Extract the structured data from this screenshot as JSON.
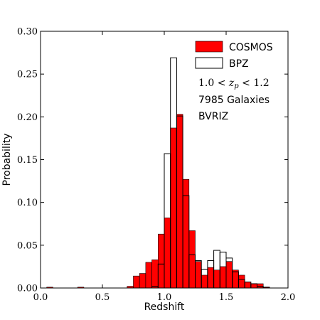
{
  "chart_data": {
    "type": "bar",
    "xlabel": "Redshift",
    "ylabel": "Probability",
    "xlim": [
      0.0,
      2.0
    ],
    "ylim": [
      0.0,
      0.3
    ],
    "xticks": [
      "0.0",
      "0.5",
      "1.0",
      "1.5",
      "2.0"
    ],
    "yticks": [
      "0.00",
      "0.05",
      "0.10",
      "0.15",
      "0.20",
      "0.25",
      "0.30"
    ],
    "legend_position": "top-right",
    "bin_edges": [
      0.0,
      0.05,
      0.1,
      0.15,
      0.2,
      0.25,
      0.3,
      0.35,
      0.4,
      0.45,
      0.5,
      0.55,
      0.6,
      0.65,
      0.7,
      0.75,
      0.8,
      0.85,
      0.9,
      0.95,
      1.0,
      1.05,
      1.1,
      1.15,
      1.2,
      1.25,
      1.3,
      1.35,
      1.4,
      1.45,
      1.5,
      1.55,
      1.6,
      1.65,
      1.7,
      1.75,
      1.8,
      1.85,
      1.9,
      1.95,
      2.0
    ],
    "series": [
      {
        "name": "COSMOS",
        "style": "filled",
        "color": "#ff0000",
        "values": [
          0.0,
          0.001,
          0.0,
          0.0,
          0.0,
          0.0,
          0.001,
          0.0,
          0.0,
          0.0,
          0.0,
          0.0,
          0.0,
          0.0,
          0.002,
          0.014,
          0.017,
          0.03,
          0.033,
          0.063,
          0.082,
          0.187,
          0.203,
          0.127,
          0.067,
          0.031,
          0.015,
          0.024,
          0.021,
          0.025,
          0.031,
          0.021,
          0.015,
          0.007,
          0.005,
          0.005,
          0.001,
          0.0,
          0.0,
          0.0
        ]
      },
      {
        "name": "BPZ",
        "style": "outline",
        "color": "#000000",
        "values": [
          0.0,
          0.0,
          0.0,
          0.0,
          0.0,
          0.0,
          0.0,
          0.0,
          0.0,
          0.0,
          0.0,
          0.0,
          0.0,
          0.0,
          0.0,
          0.0,
          0.0,
          0.0,
          0.002,
          0.028,
          0.157,
          0.269,
          0.201,
          0.108,
          0.039,
          0.032,
          0.022,
          0.032,
          0.044,
          0.042,
          0.035,
          0.019,
          0.01,
          0.007,
          0.005,
          0.002,
          0.001,
          0.0,
          0.0,
          0.0
        ]
      }
    ],
    "annotations": [
      {
        "kind": "math",
        "parts": [
          "1.0 < ",
          "z",
          "p",
          " < 1.2"
        ]
      },
      {
        "kind": "text",
        "text": "7985 Galaxies"
      },
      {
        "kind": "text",
        "text": "BVRIZ"
      }
    ]
  }
}
